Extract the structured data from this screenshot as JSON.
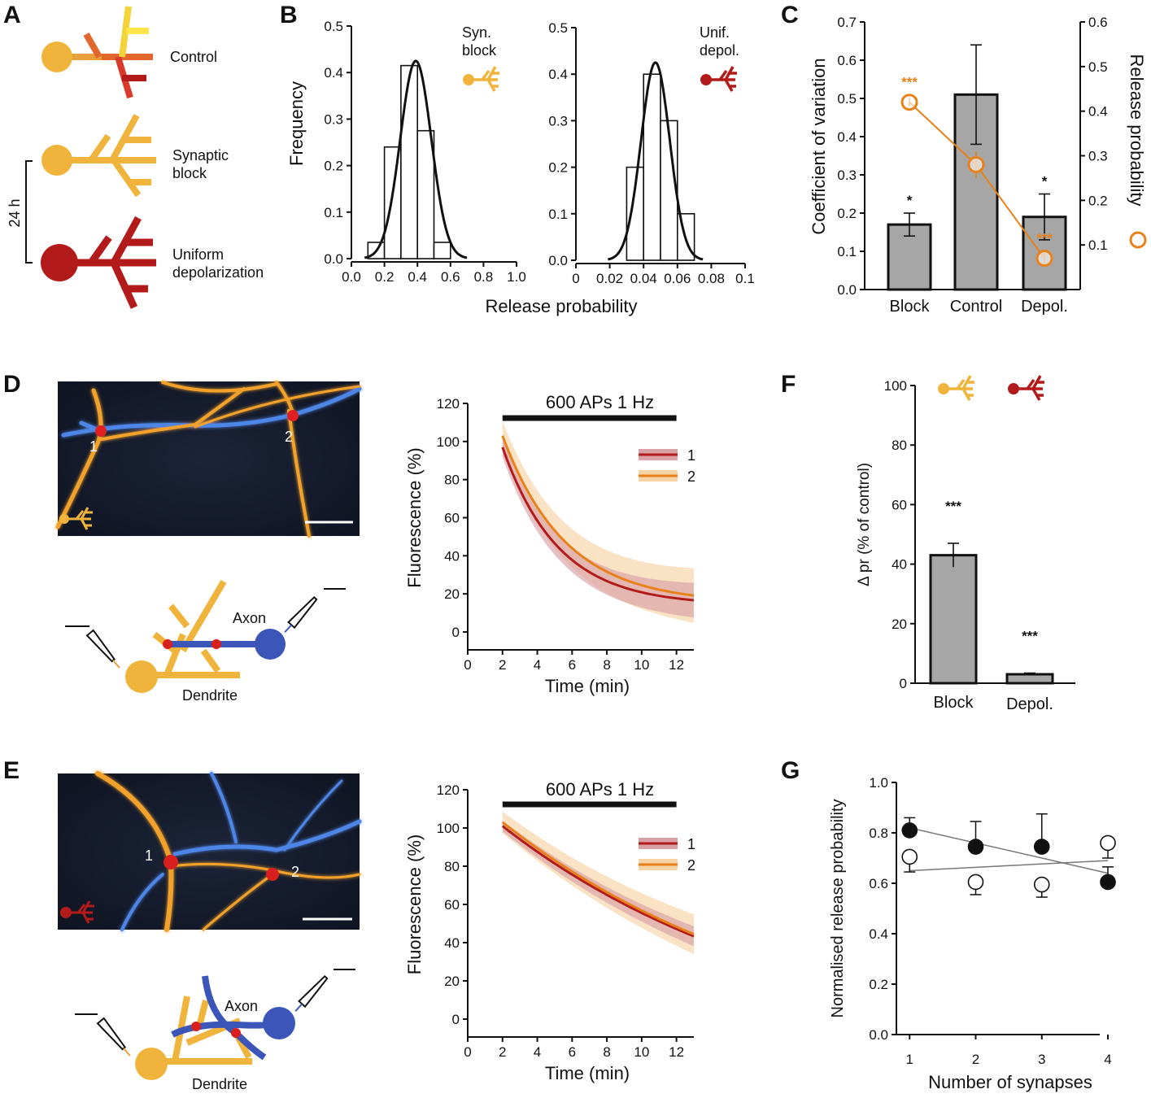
{
  "panel_letters": [
    "A",
    "B",
    "C",
    "D",
    "E",
    "F",
    "G"
  ],
  "colors": {
    "sync_block": "#f0b43c",
    "depol": "#b31b1b",
    "control_1": "#e8a03a",
    "control_2": "#e2672d",
    "control_3": "#f4d33a",
    "control_4": "#d83a2c",
    "axon": "#3b55b8",
    "bar_gray": "#a6a6a6",
    "orange_pr": "#e8811a",
    "trace1": "#b31b1b",
    "trace2": "#e8811a"
  },
  "panel_a": {
    "labels": {
      "control": "Control",
      "synaptic_block": "Synaptic\nblock",
      "uniform_depol": "Uniform\ndepolarization"
    },
    "time_label": "24 h"
  },
  "panel_b": {
    "ylabel": "Frequency",
    "xlabel": "Release probability",
    "left_legend": "Syn.\nblock",
    "right_legend": "Unif.\ndepol."
  },
  "panel_c": {
    "ylabel_left": "Coefficient of variation",
    "ylabel_right": "Release probability"
  },
  "panel_d": {
    "roi_labels": [
      "1",
      "2"
    ],
    "schematic": {
      "axon": "Axon",
      "dendrite": "Dendrite"
    }
  },
  "panel_e": {
    "roi_labels": [
      "1",
      "2"
    ],
    "schematic": {
      "axon": "Axon",
      "dendrite": "Dendrite"
    }
  },
  "chart_data": [
    {
      "id": "B_left",
      "type": "bar",
      "title": "",
      "xlabel": "Release probability",
      "ylabel": "Frequency",
      "xlim": [
        0,
        1.0
      ],
      "ylim": [
        0,
        0.5
      ],
      "xticks": [
        "0.0",
        "0.2",
        "0.4",
        "0.6",
        "0.8",
        "1.0"
      ],
      "yticks": [
        "0.0",
        "0.1",
        "0.2",
        "0.3",
        "0.4",
        "0.5"
      ],
      "bin_edges": [
        0.1,
        0.2,
        0.3,
        0.4,
        0.5,
        0.6
      ],
      "values": [
        0.035,
        0.24,
        0.415,
        0.275,
        0.035
      ],
      "fit": {
        "type": "gaussian",
        "mean": 0.39,
        "sd": 0.094,
        "peak": 0.425
      },
      "legend": "Syn.\nblock"
    },
    {
      "id": "B_right",
      "type": "bar",
      "title": "",
      "xlabel": "Release probability",
      "ylabel": "",
      "xlim": [
        0,
        0.1
      ],
      "ylim": [
        0,
        0.5
      ],
      "xticks": [
        "0",
        "0.02",
        "0.04",
        "0.06",
        "0.08",
        "0.1"
      ],
      "yticks": [
        "0.0",
        "0.1",
        "0.2",
        "0.3",
        "0.4",
        "0.5"
      ],
      "bin_edges": [
        0.03,
        0.04,
        0.05,
        0.06,
        0.07
      ],
      "values": [
        0.2,
        0.4,
        0.3,
        0.1
      ],
      "fit": {
        "type": "gaussian",
        "mean": 0.047,
        "sd": 0.0085,
        "peak": 0.425
      },
      "legend": "Unif.\ndepol."
    },
    {
      "id": "C",
      "type": "bar",
      "title": "",
      "categories": [
        "Block",
        "Control",
        "Depol."
      ],
      "ylabel": "Coefficient of variation",
      "ylim": [
        0,
        0.7
      ],
      "yticks": [
        "0.0",
        "0.1",
        "0.2",
        "0.3",
        "0.4",
        "0.5",
        "0.6",
        "0.7"
      ],
      "values": [
        0.17,
        0.51,
        0.19
      ],
      "errors": [
        0.03,
        0.13,
        0.06
      ],
      "stars": [
        "*",
        "",
        "*"
      ],
      "secondary": {
        "ylabel": "Release probability",
        "ylim": [
          0.0,
          0.6
        ],
        "yticks": [
          "0.1",
          "0.2",
          "0.3",
          "0.4",
          "0.5",
          "0.6"
        ],
        "values": [
          0.42,
          0.28,
          0.07
        ],
        "errors": [
          0.01,
          0.03,
          0.01
        ],
        "stars": [
          "***",
          "",
          "***"
        ]
      }
    },
    {
      "id": "D",
      "type": "line",
      "title": "600 APs 1 Hz",
      "xlabel": "Time (min)",
      "ylabel": "Fluorescence (%)",
      "xlim": [
        0,
        13
      ],
      "ylim": [
        0,
        120
      ],
      "xticks": [
        "0",
        "2",
        "4",
        "6",
        "8",
        "10",
        "12"
      ],
      "yticks": [
        "0",
        "20",
        "40",
        "60",
        "80",
        "100",
        "120"
      ],
      "stim_bar": [
        2,
        12
      ],
      "series": [
        {
          "name": "1",
          "model": {
            "start": 2,
            "y0": 97,
            "plateau": 14,
            "tau": 3.2
          },
          "band": 7
        },
        {
          "name": "2",
          "model": {
            "start": 2,
            "y0": 103,
            "plateau": 15,
            "tau": 3.6
          },
          "band": 11
        }
      ]
    },
    {
      "id": "E",
      "type": "line",
      "title": "600 APs 1 Hz",
      "xlabel": "Time (min)",
      "ylabel": "Fluorescence (%)",
      "xlim": [
        0,
        13
      ],
      "ylim": [
        0,
        120
      ],
      "xticks": [
        "0",
        "2",
        "4",
        "6",
        "8",
        "10",
        "12"
      ],
      "yticks": [
        "0",
        "20",
        "40",
        "60",
        "80",
        "100",
        "120"
      ],
      "stim_bar": [
        2,
        12
      ],
      "series": [
        {
          "name": "1",
          "model": {
            "start": 2,
            "y0": 101,
            "plateau": -20,
            "tau": 17
          },
          "band": 4
        },
        {
          "name": "2",
          "model": {
            "start": 2,
            "y0": 103,
            "plateau": -20,
            "tau": 17
          },
          "band": 8
        }
      ]
    },
    {
      "id": "F",
      "type": "bar",
      "title": "",
      "categories": [
        "Block",
        "Depol."
      ],
      "ylabel": "Δ pr (% of control)",
      "ylim": [
        0,
        100
      ],
      "yticks": [
        "0",
        "20",
        "40",
        "60",
        "80",
        "100"
      ],
      "values": [
        43,
        3
      ],
      "errors": [
        4,
        0.4
      ],
      "stars": [
        "***",
        "***"
      ]
    },
    {
      "id": "G",
      "type": "scatter",
      "title": "",
      "xlabel": "Number of synapses",
      "ylabel": "Normalised release probability",
      "xlim": [
        0.8,
        4.0
      ],
      "ylim": [
        0,
        1.0
      ],
      "xticks": [
        "1",
        "2",
        "3",
        "4"
      ],
      "yticks": [
        "0.0",
        "0.2",
        "0.4",
        "0.6",
        "0.8",
        "1.0"
      ],
      "series": [
        {
          "name": "",
          "filled": true,
          "x": [
            1,
            2,
            3,
            4
          ],
          "y": [
            0.81,
            0.745,
            0.745,
            0.605
          ],
          "err": [
            0.05,
            0.1,
            0.13,
            0.06
          ],
          "fit": [
            [
              1,
              0.82
            ],
            [
              4,
              0.64
            ]
          ]
        },
        {
          "name": "",
          "filled": false,
          "x": [
            1,
            2,
            3,
            4
          ],
          "y": [
            0.705,
            0.605,
            0.595,
            0.76
          ],
          "err": [
            0.06,
            0.05,
            0.05,
            0.06
          ],
          "fit": [
            [
              1,
              0.65
            ],
            [
              4,
              0.69
            ]
          ]
        }
      ]
    }
  ]
}
